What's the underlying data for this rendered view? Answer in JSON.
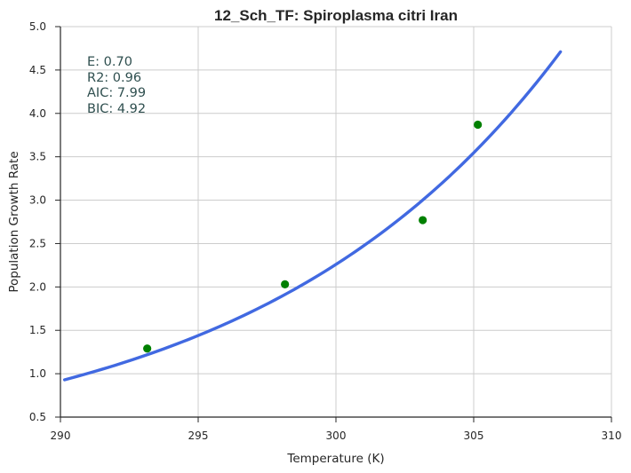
{
  "chart_data": {
    "type": "scatter",
    "title": "12_Sch_TF: Spiroplasma citri Iran",
    "xlabel": "Temperature (K)",
    "ylabel": "Population Growth Rate",
    "xlim": [
      290,
      310
    ],
    "ylim": [
      0.5,
      5.0
    ],
    "x_ticks": [
      290,
      295,
      300,
      305,
      310
    ],
    "y_ticks": [
      0.5,
      1.0,
      1.5,
      2.0,
      2.5,
      3.0,
      3.5,
      4.0,
      4.5,
      5.0
    ],
    "grid": true,
    "series": [
      {
        "kind": "points",
        "color": "#008000",
        "x": [
          293.15,
          298.15,
          303.15,
          305.15
        ],
        "y": [
          1.29,
          2.03,
          2.77,
          3.87
        ]
      },
      {
        "kind": "curve",
        "color": "#4169e1",
        "x": [
          290.15,
          308.15
        ],
        "y": [
          0.93,
          4.71
        ]
      }
    ],
    "annotations": [
      "E:  0.70",
      "R2:  0.96",
      "AIC: 7.99",
      "BIC: 4.92"
    ]
  },
  "colors": {
    "points": "#008000",
    "curve": "#4169e1",
    "annotation": "#2f4f4f"
  }
}
